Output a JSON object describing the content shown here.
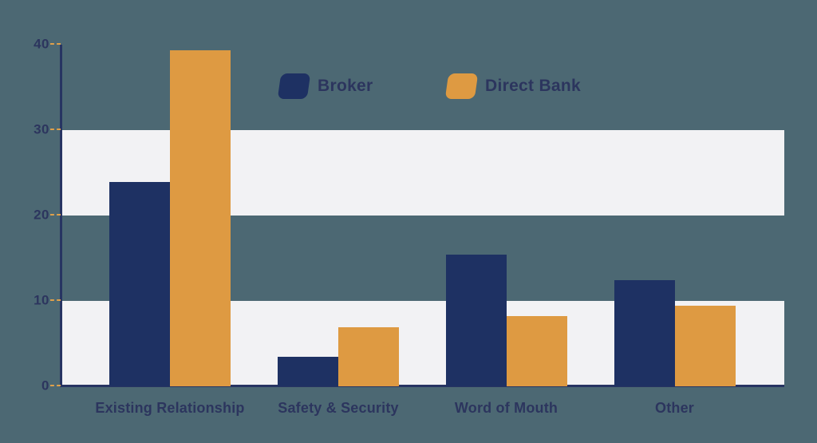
{
  "colors": {
    "background": "#4c6873",
    "band": "#f2f2f4",
    "navy": "#1e3163",
    "orange": "#de9a42",
    "text": "#2c355e",
    "tick_dash": "#dfa04b",
    "axis_line": "#273462"
  },
  "legend": {
    "items": [
      {
        "label": "Broker",
        "swatch": "navy-swatch"
      },
      {
        "label": "Direct Bank",
        "swatch": "orange-swatch"
      }
    ]
  },
  "chart_data": {
    "type": "bar",
    "title": "",
    "xlabel": "",
    "ylabel": "",
    "categories": [
      "Existing Relationship",
      "Safety & Security",
      "Word of Mouth",
      "Other"
    ],
    "series": [
      {
        "name": "Broker",
        "color": "#1e3163",
        "values": [
          23.9,
          3.5,
          15.4,
          12.4
        ]
      },
      {
        "name": "Direct Bank",
        "color": "#de9a42",
        "values": [
          39.3,
          6.9,
          8.2,
          9.4
        ]
      }
    ],
    "ylim": [
      0,
      40
    ],
    "yticks": [
      0,
      10,
      20,
      30,
      40
    ],
    "ytick_labels": [
      "0",
      "10",
      "20",
      "30",
      "40"
    ],
    "grid": "off",
    "background_bands": [
      [
        0,
        10
      ],
      [
        20,
        30
      ]
    ],
    "legend_position": "top-center"
  }
}
